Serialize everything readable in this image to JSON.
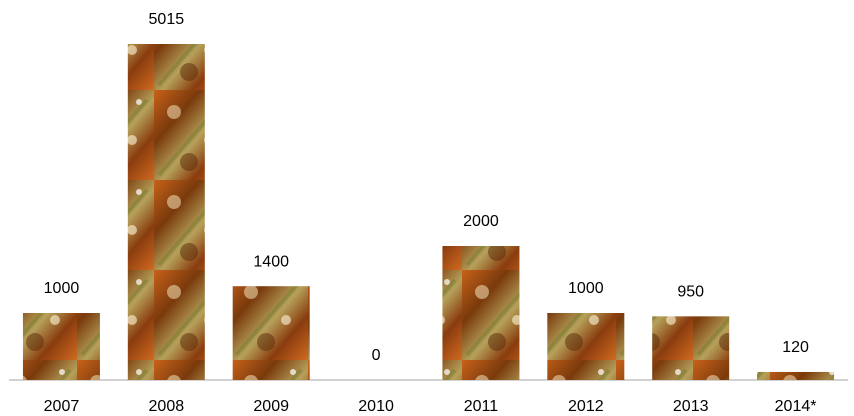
{
  "chart_data": {
    "type": "bar",
    "categories": [
      "2007",
      "2008",
      "2009",
      "2010",
      "2011",
      "2012",
      "2013",
      "2014*"
    ],
    "values": [
      1000,
      5015,
      1400,
      0,
      2000,
      1000,
      950,
      120
    ]
  }
}
